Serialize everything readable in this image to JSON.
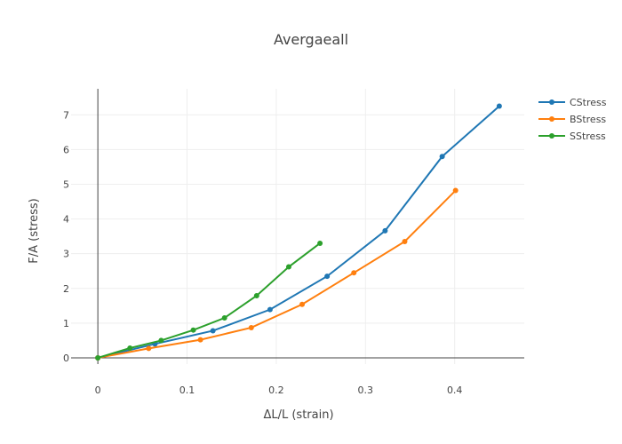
{
  "chart_data": {
    "type": "line",
    "title": "Avergaeall",
    "xlabel": "ΔL/L (strain)",
    "ylabel": "F/A (stress)",
    "xlim": [
      -0.03,
      0.478
    ],
    "ylim": [
      -0.18,
      7.75
    ],
    "x_ticks": [
      0,
      0.1,
      0.2,
      0.3,
      0.4
    ],
    "x_tick_labels": [
      "0",
      "0.1",
      "0.2",
      "0.3",
      "0.4"
    ],
    "y_ticks": [
      0,
      1,
      2,
      3,
      4,
      5,
      6,
      7
    ],
    "y_tick_labels": [
      "0",
      "1",
      "2",
      "3",
      "4",
      "5",
      "6",
      "7"
    ],
    "grid": true,
    "legend_position": "top-right",
    "series": [
      {
        "name": "CStress",
        "color": "#1f77b4",
        "x": [
          0,
          0.064,
          0.129,
          0.193,
          0.257,
          0.322,
          0.386,
          0.45
        ],
        "y": [
          0,
          0.4,
          0.78,
          1.39,
          2.35,
          3.66,
          5.8,
          7.25
        ]
      },
      {
        "name": "BStress",
        "color": "#ff7f0e",
        "x": [
          0,
          0.057,
          0.115,
          0.172,
          0.229,
          0.287,
          0.344,
          0.401
        ],
        "y": [
          0,
          0.27,
          0.52,
          0.87,
          1.54,
          2.45,
          3.35,
          4.82
        ]
      },
      {
        "name": "SStress",
        "color": "#2ca02c",
        "x": [
          0,
          0.036,
          0.071,
          0.107,
          0.142,
          0.178,
          0.214,
          0.249
        ],
        "y": [
          0,
          0.28,
          0.5,
          0.8,
          1.15,
          1.79,
          2.62,
          3.3
        ]
      }
    ]
  }
}
